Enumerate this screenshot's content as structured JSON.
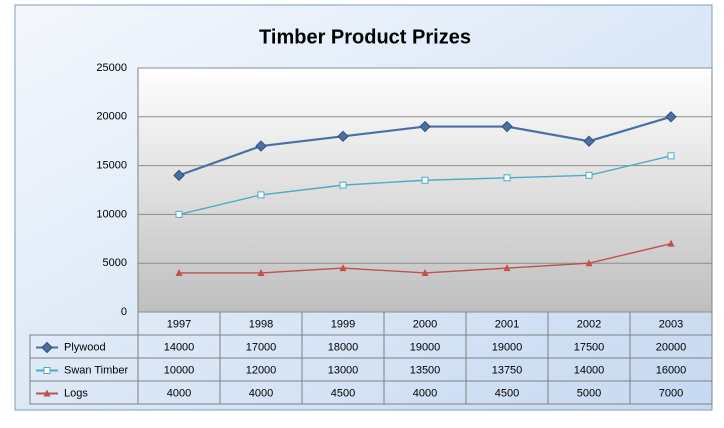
{
  "chart_data": {
    "type": "line",
    "title": "Timber Product Prizes",
    "categories": [
      "1997",
      "1998",
      "1999",
      "2000",
      "2001",
      "2002",
      "2003"
    ],
    "series": [
      {
        "name": "Plywood",
        "color": "#4a6fa5",
        "marker": "diamond",
        "values": [
          14000,
          17000,
          18000,
          19000,
          19000,
          17500,
          20000
        ]
      },
      {
        "name": "Swan Timber",
        "color": "#4bacc6",
        "marker": "square",
        "values": [
          10000,
          12000,
          13000,
          13500,
          13750,
          14000,
          16000
        ]
      },
      {
        "name": "Logs",
        "color": "#c0504d",
        "marker": "triangle",
        "values": [
          4000,
          4000,
          4500,
          4000,
          4500,
          5000,
          7000
        ]
      }
    ],
    "ylim": [
      0,
      25000
    ],
    "yticks": [
      0,
      5000,
      10000,
      15000,
      20000,
      25000
    ],
    "grid": true
  }
}
